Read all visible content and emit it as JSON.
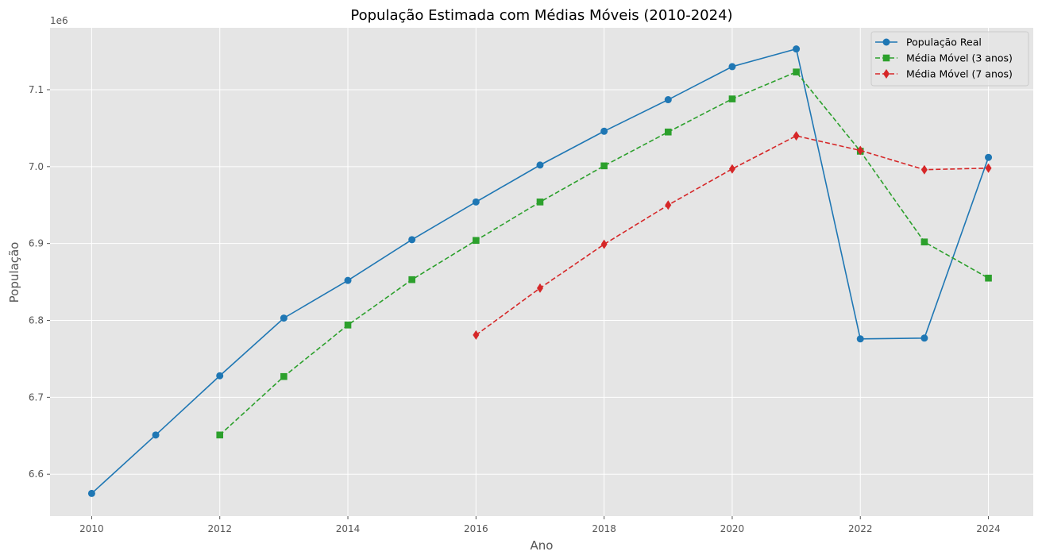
{
  "chart_data": {
    "type": "line",
    "title": "População Estimada com Médias Móveis (2010-2024)",
    "xlabel": "Ano",
    "ylabel": "População",
    "y_offset_label": "1e6",
    "xlim": [
      2009.35,
      2024.7
    ],
    "ylim": [
      6.5455,
      7.1805
    ],
    "x_ticks": [
      2010,
      2012,
      2014,
      2016,
      2018,
      2020,
      2022,
      2024
    ],
    "x_tick_labels": [
      "2010",
      "2012",
      "2014",
      "2016",
      "2018",
      "2020",
      "2022",
      "2024"
    ],
    "y_ticks": [
      6.6,
      6.7,
      6.8,
      6.9,
      7.0,
      7.1
    ],
    "y_tick_labels": [
      "6.6",
      "6.7",
      "6.8",
      "6.9",
      "7.0",
      "7.1"
    ],
    "grid": true,
    "legend_position": "top-right",
    "series": [
      {
        "name": "População Real",
        "color": "#1f77b4",
        "marker": "circle",
        "dash": "solid",
        "x": [
          2010,
          2011,
          2012,
          2013,
          2014,
          2015,
          2016,
          2017,
          2018,
          2019,
          2020,
          2021,
          2022,
          2023,
          2024
        ],
        "values": [
          6.575,
          6.651,
          6.728,
          6.803,
          6.852,
          6.905,
          6.954,
          7.002,
          7.046,
          7.087,
          7.13,
          7.153,
          6.776,
          6.777,
          7.012
        ]
      },
      {
        "name": "Média Móvel (3 anos)",
        "color": "#2ca02c",
        "marker": "square",
        "dash": "dashed",
        "x": [
          2012,
          2013,
          2014,
          2015,
          2016,
          2017,
          2018,
          2019,
          2020,
          2021,
          2022,
          2023,
          2024
        ],
        "values": [
          6.651,
          6.727,
          6.794,
          6.853,
          6.904,
          6.954,
          7.001,
          7.045,
          7.088,
          7.123,
          7.02,
          6.902,
          6.855
        ]
      },
      {
        "name": "Média Móvel (7 anos)",
        "color": "#d62728",
        "marker": "diamond",
        "dash": "dashed",
        "x": [
          2016,
          2017,
          2018,
          2019,
          2020,
          2021,
          2022,
          2023,
          2024
        ],
        "values": [
          6.781,
          6.842,
          6.899,
          6.95,
          6.997,
          7.04,
          7.021,
          6.996,
          6.998
        ]
      }
    ]
  }
}
